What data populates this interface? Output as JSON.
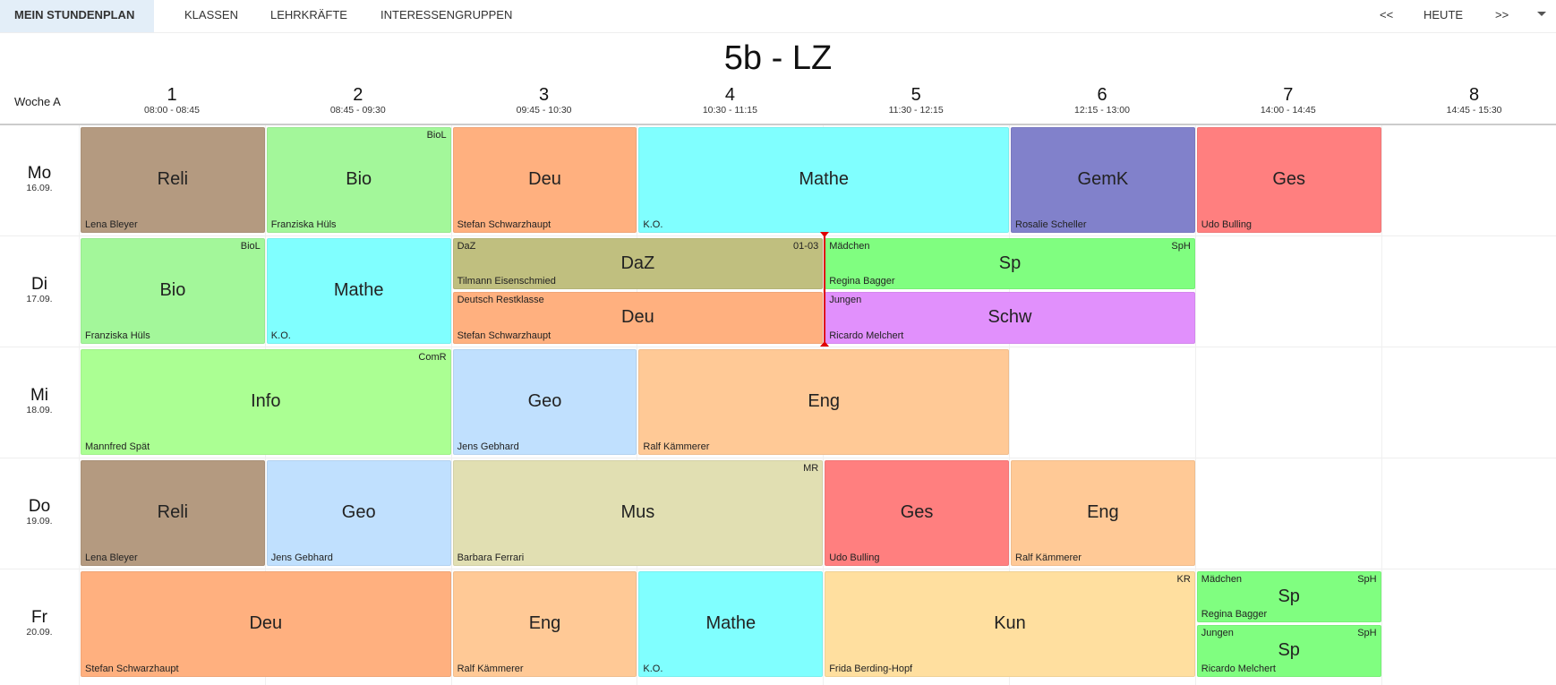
{
  "nav": {
    "active": "MEIN STUNDENPLAN",
    "items": [
      "KLASSEN",
      "LEHRKRÄFTE",
      "INTERESSENGRUPPEN"
    ],
    "prev": "<<",
    "today": "HEUTE",
    "next": ">>"
  },
  "title": "5b - LZ",
  "week": "Woche A",
  "periods": [
    {
      "num": "1",
      "time": "08:00 - 08:45"
    },
    {
      "num": "2",
      "time": "08:45 - 09:30"
    },
    {
      "num": "3",
      "time": "09:45 - 10:30"
    },
    {
      "num": "4",
      "time": "10:30 - 11:15"
    },
    {
      "num": "5",
      "time": "11:30 - 12:15"
    },
    {
      "num": "6",
      "time": "12:15 - 13:00"
    },
    {
      "num": "7",
      "time": "14:00 - 14:45"
    },
    {
      "num": "8",
      "time": "14:45 - 15:30"
    }
  ],
  "days": [
    {
      "name": "Mo",
      "date": "16.09."
    },
    {
      "name": "Di",
      "date": "17.09."
    },
    {
      "name": "Mi",
      "date": "18.09."
    },
    {
      "name": "Do",
      "date": "19.09."
    },
    {
      "name": "Fr",
      "date": "20.09."
    }
  ],
  "colors": {
    "Reli": "#b49a80",
    "Bio": "#a3f79a",
    "Deu": "#ffb07f",
    "Mathe": "#80ffff",
    "GemK": "#8181cb",
    "Ges": "#ff7f7f",
    "DaZ": "#c0bf7f",
    "Sp": "#80fe80",
    "Schw": "#e190fc",
    "Info": "#abff93",
    "Geo": "#c0e0fe",
    "Eng": "#ffc996",
    "Mus": "#e1dfb2",
    "Kun": "#ffdf9f"
  },
  "lessons": [
    {
      "day": 0,
      "start": 0,
      "span": 1,
      "subject": "Reli",
      "teacher": "Lena Bleyer",
      "room": "",
      "group": ""
    },
    {
      "day": 0,
      "start": 1,
      "span": 1,
      "subject": "Bio",
      "teacher": "Franziska Hüls",
      "room": "BioL",
      "group": ""
    },
    {
      "day": 0,
      "start": 2,
      "span": 1,
      "subject": "Deu",
      "teacher": "Stefan Schwarzhaupt",
      "room": "",
      "group": ""
    },
    {
      "day": 0,
      "start": 3,
      "span": 2,
      "subject": "Mathe",
      "teacher": "K.O.",
      "room": "",
      "group": ""
    },
    {
      "day": 0,
      "start": 5,
      "span": 1,
      "subject": "GemK",
      "teacher": "Rosalie Scheller",
      "room": "",
      "group": ""
    },
    {
      "day": 0,
      "start": 6,
      "span": 1,
      "subject": "Ges",
      "teacher": "Udo Bulling",
      "room": "",
      "group": ""
    },
    {
      "day": 1,
      "start": 0,
      "span": 1,
      "subject": "Bio",
      "teacher": "Franziska Hüls",
      "room": "BioL",
      "group": ""
    },
    {
      "day": 1,
      "start": 1,
      "span": 1,
      "subject": "Mathe",
      "teacher": "K.O.",
      "room": "",
      "group": ""
    },
    {
      "day": 1,
      "start": 2,
      "span": 2,
      "half": "top",
      "subject": "DaZ",
      "teacher": "Tilmann Eisenschmied",
      "room": "01-03",
      "group": "DaZ"
    },
    {
      "day": 1,
      "start": 2,
      "span": 2,
      "half": "bottom",
      "subject": "Deu",
      "teacher": "Stefan Schwarzhaupt",
      "room": "",
      "group": "Deutsch Restklasse"
    },
    {
      "day": 1,
      "start": 4,
      "span": 2,
      "half": "top",
      "subject": "Sp",
      "teacher": "Regina Bagger",
      "room": "SpH",
      "group": "Mädchen"
    },
    {
      "day": 1,
      "start": 4,
      "span": 2,
      "half": "bottom",
      "subject": "Schw",
      "teacher": "Ricardo Melchert",
      "room": "",
      "group": "Jungen"
    },
    {
      "day": 2,
      "start": 0,
      "span": 2,
      "subject": "Info",
      "teacher": "Mannfred Spät",
      "room": "ComR",
      "group": ""
    },
    {
      "day": 2,
      "start": 2,
      "span": 1,
      "subject": "Geo",
      "teacher": "Jens Gebhard",
      "room": "",
      "group": ""
    },
    {
      "day": 2,
      "start": 3,
      "span": 2,
      "subject": "Eng",
      "teacher": "Ralf Kämmerer",
      "room": "",
      "group": ""
    },
    {
      "day": 3,
      "start": 0,
      "span": 1,
      "subject": "Reli",
      "teacher": "Lena Bleyer",
      "room": "",
      "group": ""
    },
    {
      "day": 3,
      "start": 1,
      "span": 1,
      "subject": "Geo",
      "teacher": "Jens Gebhard",
      "room": "",
      "group": ""
    },
    {
      "day": 3,
      "start": 2,
      "span": 2,
      "subject": "Mus",
      "teacher": "Barbara Ferrari",
      "room": "MR",
      "group": ""
    },
    {
      "day": 3,
      "start": 4,
      "span": 1,
      "subject": "Ges",
      "teacher": "Udo Bulling",
      "room": "",
      "group": ""
    },
    {
      "day": 3,
      "start": 5,
      "span": 1,
      "subject": "Eng",
      "teacher": "Ralf Kämmerer",
      "room": "",
      "group": ""
    },
    {
      "day": 4,
      "start": 0,
      "span": 2,
      "subject": "Deu",
      "teacher": "Stefan Schwarzhaupt",
      "room": "",
      "group": ""
    },
    {
      "day": 4,
      "start": 2,
      "span": 1,
      "subject": "Eng",
      "teacher": "Ralf Kämmerer",
      "room": "",
      "group": ""
    },
    {
      "day": 4,
      "start": 3,
      "span": 1,
      "subject": "Mathe",
      "teacher": "K.O.",
      "room": "",
      "group": ""
    },
    {
      "day": 4,
      "start": 4,
      "span": 2,
      "subject": "Kun",
      "teacher": "Frida Berding-Hopf",
      "room": "KR",
      "group": ""
    },
    {
      "day": 4,
      "start": 6,
      "span": 1,
      "half": "top",
      "subject": "Sp",
      "teacher": "Regina Bagger",
      "room": "SpH",
      "group": "Mädchen"
    },
    {
      "day": 4,
      "start": 6,
      "span": 1,
      "half": "bottom",
      "subject": "Sp",
      "teacher": "Ricardo Melchert",
      "room": "SpH",
      "group": "Jungen"
    }
  ]
}
